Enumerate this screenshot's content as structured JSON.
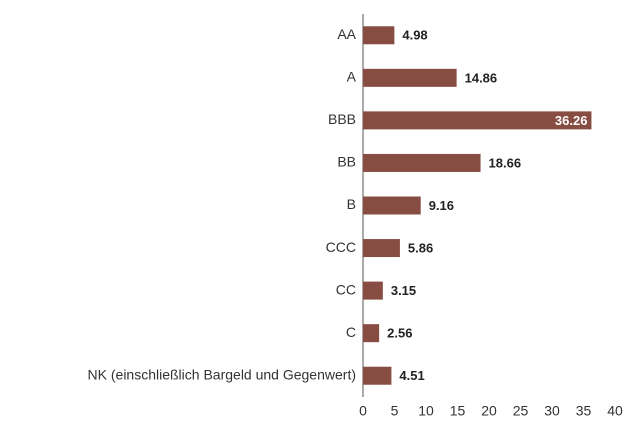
{
  "chart_data": {
    "type": "barh",
    "categories": [
      "AA",
      "A",
      "BBB",
      "BB",
      "B",
      "CCC",
      "CC",
      "C",
      "NK (einschließlich Bargeld und Gegenwert)"
    ],
    "values": [
      4.98,
      14.86,
      36.26,
      18.66,
      9.16,
      5.86,
      3.15,
      2.56,
      4.51
    ],
    "color": "#874c42",
    "xlim": [
      0,
      40
    ],
    "xticks": [
      0,
      5,
      10,
      15,
      20,
      25,
      30,
      35,
      40
    ],
    "grid": false
  }
}
